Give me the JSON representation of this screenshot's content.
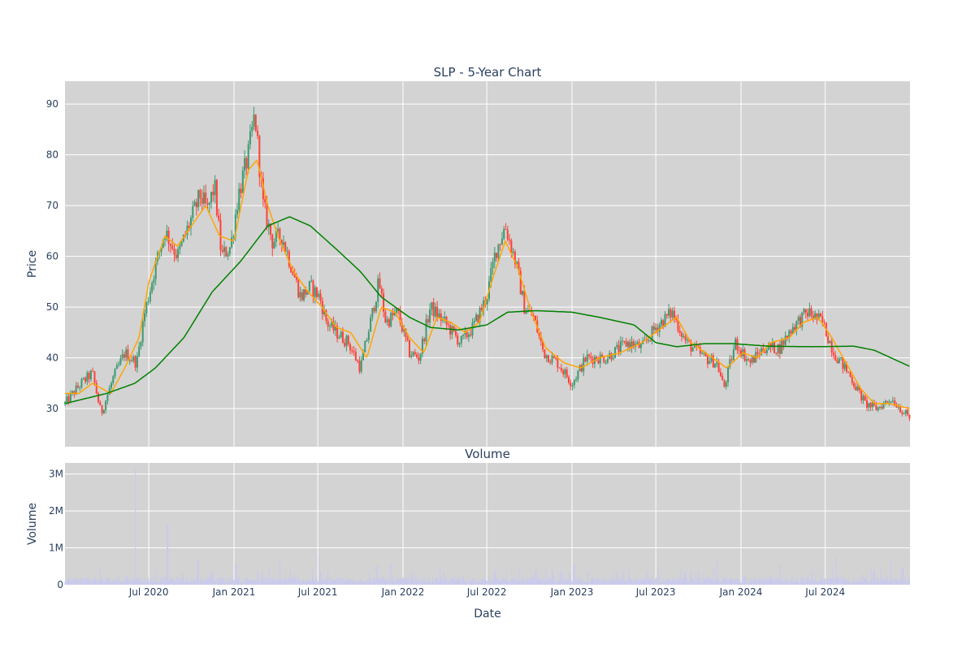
{
  "chart_data": [
    {
      "type": "candlestick",
      "title": "SLP - 5-Year Chart",
      "ylabel": "Price",
      "ylim": [
        22.5,
        94.5
      ],
      "y_ticks": [
        30,
        40,
        50,
        60,
        70,
        80,
        90
      ],
      "grid": true,
      "legend": "none",
      "colors": {
        "up": "#3d9970",
        "down": "#ff4136",
        "ma_short": "#ffa500",
        "ma_long": "#008000",
        "background": "#d3d3d3"
      },
      "price_path": [
        [
          "2020-01-02",
          31
        ],
        [
          "2020-02-01",
          34.5
        ],
        [
          "2020-03-01",
          37
        ],
        [
          "2020-03-20",
          29
        ],
        [
          "2020-04-15",
          36
        ],
        [
          "2020-05-10",
          41
        ],
        [
          "2020-06-05",
          39
        ],
        [
          "2020-06-20",
          48
        ],
        [
          "2020-07-15",
          58
        ],
        [
          "2020-08-05",
          65
        ],
        [
          "2020-09-01",
          60
        ],
        [
          "2020-09-25",
          66
        ],
        [
          "2020-10-20",
          72
        ],
        [
          "2020-11-05",
          69
        ],
        [
          "2020-11-20",
          74
        ],
        [
          "2020-12-05",
          60
        ],
        [
          "2020-12-25",
          62
        ],
        [
          "2021-01-10",
          72
        ],
        [
          "2021-02-01",
          80
        ],
        [
          "2021-02-15",
          88
        ],
        [
          "2021-03-05",
          70
        ],
        [
          "2021-03-25",
          63
        ],
        [
          "2021-04-15",
          64
        ],
        [
          "2021-05-05",
          58
        ],
        [
          "2021-05-25",
          52
        ],
        [
          "2021-06-15",
          54
        ],
        [
          "2021-07-05",
          52
        ],
        [
          "2021-07-20",
          47
        ],
        [
          "2021-08-10",
          45
        ],
        [
          "2021-09-05",
          43
        ],
        [
          "2021-10-01",
          38
        ],
        [
          "2021-10-25",
          48
        ],
        [
          "2021-11-10",
          55
        ],
        [
          "2021-11-25",
          47
        ],
        [
          "2021-12-20",
          49
        ],
        [
          "2022-01-15",
          41
        ],
        [
          "2022-02-05",
          40
        ],
        [
          "2022-03-01",
          50
        ],
        [
          "2022-04-01",
          47
        ],
        [
          "2022-05-05",
          43
        ],
        [
          "2022-06-01",
          46
        ],
        [
          "2022-07-01",
          52
        ],
        [
          "2022-07-20",
          61
        ],
        [
          "2022-08-10",
          66
        ],
        [
          "2022-09-01",
          59
        ],
        [
          "2022-09-20",
          50
        ],
        [
          "2022-10-10",
          48
        ],
        [
          "2022-11-01",
          41
        ],
        [
          "2022-12-01",
          39
        ],
        [
          "2023-01-01",
          35
        ],
        [
          "2023-02-01",
          40
        ],
        [
          "2023-03-15",
          40
        ],
        [
          "2023-05-01",
          43
        ],
        [
          "2023-06-01",
          42
        ],
        [
          "2023-07-01",
          46
        ],
        [
          "2023-08-05",
          49
        ],
        [
          "2023-09-05",
          43
        ],
        [
          "2023-10-15",
          40
        ],
        [
          "2023-11-10",
          39
        ],
        [
          "2023-11-25",
          34
        ],
        [
          "2023-12-20",
          43
        ],
        [
          "2024-01-20",
          39
        ],
        [
          "2024-02-20",
          42
        ],
        [
          "2024-03-25",
          42
        ],
        [
          "2024-04-20",
          46
        ],
        [
          "2024-05-25",
          49
        ],
        [
          "2024-06-25",
          47
        ],
        [
          "2024-07-20",
          41
        ],
        [
          "2024-08-20",
          37
        ],
        [
          "2024-09-25",
          31
        ],
        [
          "2024-10-20",
          30
        ],
        [
          "2024-11-20",
          32
        ],
        [
          "2024-12-31",
          28
        ]
      ],
      "ma_short": [
        [
          "2020-01-02",
          33
        ],
        [
          "2020-02-01",
          33
        ],
        [
          "2020-03-01",
          35
        ],
        [
          "2020-04-10",
          33
        ],
        [
          "2020-05-10",
          38
        ],
        [
          "2020-06-10",
          44
        ],
        [
          "2020-07-01",
          55
        ],
        [
          "2020-08-05",
          64
        ],
        [
          "2020-09-01",
          62
        ],
        [
          "2020-10-01",
          66
        ],
        [
          "2020-11-01",
          70
        ],
        [
          "2020-12-01",
          64
        ],
        [
          "2021-01-01",
          63
        ],
        [
          "2021-02-01",
          77
        ],
        [
          "2021-02-20",
          79
        ],
        [
          "2021-03-15",
          70
        ],
        [
          "2021-04-10",
          63
        ],
        [
          "2021-05-10",
          57
        ],
        [
          "2021-06-10",
          53
        ],
        [
          "2021-07-10",
          50
        ],
        [
          "2021-08-10",
          46
        ],
        [
          "2021-09-10",
          45
        ],
        [
          "2021-10-15",
          40
        ],
        [
          "2021-11-15",
          50
        ],
        [
          "2021-12-15",
          49
        ],
        [
          "2022-01-15",
          44
        ],
        [
          "2022-02-15",
          41
        ],
        [
          "2022-03-15",
          48
        ],
        [
          "2022-04-15",
          47
        ],
        [
          "2022-05-15",
          45
        ],
        [
          "2022-06-15",
          47
        ],
        [
          "2022-07-15",
          56
        ],
        [
          "2022-08-10",
          63
        ],
        [
          "2022-09-05",
          58
        ],
        [
          "2022-10-05",
          49
        ],
        [
          "2022-11-05",
          42
        ],
        [
          "2022-12-15",
          39
        ],
        [
          "2023-01-20",
          38
        ],
        [
          "2023-03-01",
          40
        ],
        [
          "2023-04-15",
          41
        ],
        [
          "2023-06-01",
          43
        ],
        [
          "2023-07-15",
          46
        ],
        [
          "2023-08-15",
          48
        ],
        [
          "2023-09-15",
          43
        ],
        [
          "2023-11-01",
          40
        ],
        [
          "2023-12-01",
          38
        ],
        [
          "2024-01-05",
          41
        ],
        [
          "2024-02-05",
          40
        ],
        [
          "2024-03-05",
          43
        ],
        [
          "2024-04-15",
          44
        ],
        [
          "2024-05-15",
          47
        ],
        [
          "2024-06-15",
          48
        ],
        [
          "2024-07-15",
          44
        ],
        [
          "2024-08-15",
          39
        ],
        [
          "2024-09-15",
          34
        ],
        [
          "2024-10-15",
          31
        ],
        [
          "2024-11-15",
          31
        ],
        [
          "2024-12-31",
          30
        ]
      ],
      "ma_long": [
        [
          "2020-01-02",
          31
        ],
        [
          "2020-04-01",
          33
        ],
        [
          "2020-06-01",
          35
        ],
        [
          "2020-07-15",
          38
        ],
        [
          "2020-09-15",
          44
        ],
        [
          "2020-11-15",
          53
        ],
        [
          "2021-01-15",
          59
        ],
        [
          "2021-03-15",
          66
        ],
        [
          "2021-05-01",
          67.8
        ],
        [
          "2021-06-15",
          66
        ],
        [
          "2021-08-15",
          61
        ],
        [
          "2021-10-01",
          57
        ],
        [
          "2021-11-15",
          52
        ],
        [
          "2022-01-15",
          48
        ],
        [
          "2022-03-01",
          46
        ],
        [
          "2022-05-01",
          45.5
        ],
        [
          "2022-07-01",
          46.5
        ],
        [
          "2022-08-15",
          49
        ],
        [
          "2022-10-15",
          49.3
        ],
        [
          "2023-01-01",
          49
        ],
        [
          "2023-03-01",
          48
        ],
        [
          "2023-05-15",
          46.5
        ],
        [
          "2023-07-01",
          43
        ],
        [
          "2023-08-15",
          42.2
        ],
        [
          "2023-10-15",
          42.8
        ],
        [
          "2023-12-15",
          42.8
        ],
        [
          "2024-03-01",
          42.3
        ],
        [
          "2024-06-01",
          42.2
        ],
        [
          "2024-09-01",
          42.3
        ],
        [
          "2024-10-15",
          41.5
        ],
        [
          "2024-12-31",
          38.3
        ]
      ]
    },
    {
      "type": "bar",
      "title": "Volume",
      "ylabel": "Volume",
      "xlabel": "Date",
      "ylim": [
        0,
        3300000
      ],
      "y_ticks": [
        0,
        1000000,
        2000000,
        3000000
      ],
      "y_tick_labels": [
        "0",
        "1M",
        "2M",
        "3M"
      ],
      "x_ticks": [
        "2020-07-01",
        "2021-01-01",
        "2021-07-01",
        "2022-01-01",
        "2022-07-01",
        "2023-01-01",
        "2023-07-01",
        "2024-01-01",
        "2024-07-01"
      ],
      "x_tick_labels": [
        "Jul 2020",
        "Jan 2021",
        "Jul 2021",
        "Jan 2022",
        "Jul 2022",
        "Jan 2023",
        "Jul 2023",
        "Jan 2024",
        "Jul 2024"
      ],
      "x_range": [
        "2020-01-02",
        "2024-12-31"
      ],
      "grid": true,
      "colors": {
        "bar": "#c8c8f0",
        "background": "#d3d3d3"
      },
      "volume_spikes": [
        [
          "2020-06-02",
          3150000
        ],
        [
          "2020-08-10",
          1650000
        ],
        [
          "2020-10-15",
          650000
        ],
        [
          "2021-01-05",
          600000
        ],
        [
          "2021-04-10",
          750000
        ],
        [
          "2021-07-05",
          780000
        ],
        [
          "2021-11-05",
          500000
        ],
        [
          "2021-12-05",
          550000
        ],
        [
          "2022-07-20",
          450000
        ],
        [
          "2022-10-15",
          400000
        ],
        [
          "2023-01-05",
          550000
        ],
        [
          "2023-11-10",
          750000
        ],
        [
          "2024-03-25",
          550000
        ],
        [
          "2024-07-25",
          750000
        ],
        [
          "2024-10-15",
          500000
        ],
        [
          "2024-11-20",
          700000
        ],
        [
          "2024-12-15",
          450000
        ]
      ],
      "volume_base": 120000
    }
  ]
}
